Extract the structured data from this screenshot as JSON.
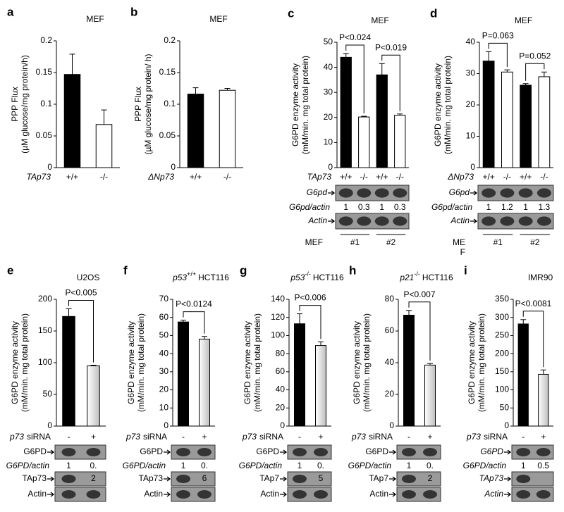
{
  "chart_data": [
    {
      "panel": "a",
      "type": "bar",
      "title": "MEF",
      "ylabel": [
        "PPP Flux",
        "(µM glucose/mg protein/h)"
      ],
      "group_label": "TAp73",
      "categories": [
        "+/+",
        "-/-"
      ],
      "values": [
        0.147,
        0.068
      ],
      "errors": [
        0.032,
        0.023
      ],
      "colors": [
        "#000000",
        "#ffffff"
      ],
      "ylim": [
        0,
        0.2
      ],
      "yticks": [
        0,
        0.05,
        0.1,
        0.15,
        0.2
      ]
    },
    {
      "panel": "b",
      "type": "bar",
      "title": "MEF",
      "ylabel": [
        "PPP Flux",
        "(µM glucose/mg protein/ h)"
      ],
      "group_label": "ΔNp73",
      "categories": [
        "+/+",
        "-/-"
      ],
      "values": [
        0.116,
        0.122
      ],
      "errors": [
        0.01,
        0.003
      ],
      "colors": [
        "#000000",
        "#ffffff"
      ],
      "ylim": [
        0,
        0.2
      ],
      "yticks": [
        0,
        0.05,
        0.1,
        0.15,
        0.2
      ]
    },
    {
      "panel": "c",
      "type": "bar",
      "title": "MEF",
      "ylabel": [
        "G6PD enzyme activity",
        "(mM/min. mg total protein)"
      ],
      "group_label": "TAp73",
      "categories": [
        "+/+",
        "-/-",
        "+/+",
        "-/-"
      ],
      "values": [
        44,
        20.2,
        37,
        20.9
      ],
      "errors": [
        1.5,
        0.3,
        4.5,
        0.5
      ],
      "colors": [
        "#000000",
        "#ffffff",
        "#000000",
        "#ffffff"
      ],
      "ylim": [
        0,
        50
      ],
      "yticks": [
        0,
        10,
        20,
        30,
        40,
        50
      ],
      "annotations": [
        "P<0.024",
        "P<0.019"
      ],
      "blot": {
        "rows": [
          "G6pd",
          "G6pd/actin",
          "Actin"
        ],
        "ratios": [
          "1",
          "0.3",
          "1",
          "0.3"
        ],
        "cell_line": [
          "MEF"
        ],
        "groups": [
          "#1",
          "#2"
        ]
      }
    },
    {
      "panel": "d",
      "type": "bar",
      "title": "MEF",
      "ylabel": [
        "G6PD enzyme activity",
        "(mM/min. mg total protein)"
      ],
      "group_label": "ΔNp73",
      "categories": [
        "+/+",
        "-/-",
        "+/+",
        "-/-"
      ],
      "values": [
        34,
        30.5,
        26.3,
        29
      ],
      "errors": [
        3,
        0.7,
        0.5,
        1.5
      ],
      "colors": [
        "#000000",
        "#ffffff",
        "#000000",
        "#ffffff"
      ],
      "ylim": [
        0,
        40
      ],
      "yticks": [
        0,
        10,
        20,
        30,
        40
      ],
      "annotations": [
        "P=0.063",
        "P=0.052"
      ],
      "blot": {
        "rows": [
          "G6pd",
          "G6pd/actin",
          "Actin"
        ],
        "ratios": [
          "1",
          "1.2",
          "1",
          "1.3"
        ],
        "cell_line": [
          "ME",
          "F"
        ],
        "groups": [
          "#1",
          "#2"
        ]
      }
    },
    {
      "panel": "e",
      "type": "bar",
      "title": "U2OS",
      "ylabel": [
        "G6PD enzyme activity",
        "(mM/min. mg total protein)"
      ],
      "xlabel_gene": "p73",
      "xlabel": "siRNA",
      "categories": [
        "-",
        "+"
      ],
      "values": [
        173,
        95
      ],
      "errors": [
        12,
        1
      ],
      "colors": [
        "#000000",
        "#bfbfbf"
      ],
      "ylim": [
        0,
        200
      ],
      "yticks": [
        0,
        50,
        100,
        150,
        200
      ],
      "annotations": [
        "P<0.005"
      ],
      "blot": {
        "rows": [
          "G6PD",
          "G6PD/actin",
          "TAp73",
          "Actin"
        ],
        "ratios": [
          "1",
          "0."
        ],
        "overlay": "2"
      }
    },
    {
      "panel": "f",
      "type": "bar",
      "title_gene": "p53",
      "title_sup": "+/+",
      "title": "HCT116",
      "ylabel": [
        "G6PD enzyme activity",
        "(mM/min. mg total protein)"
      ],
      "xlabel_gene": "p73",
      "xlabel": "siRNA",
      "categories": [
        "-",
        "+"
      ],
      "values": [
        57.5,
        48
      ],
      "errors": [
        1,
        1.5
      ],
      "colors": [
        "#000000",
        "#bfbfbf"
      ],
      "ylim": [
        0,
        70
      ],
      "yticks": [
        0,
        10,
        20,
        30,
        40,
        50,
        60,
        70
      ],
      "annotations": [
        "P<0.0124"
      ],
      "blot": {
        "rows": [
          "G6PD",
          "G6PD/actin",
          "TAp73",
          "Actin"
        ],
        "ratios": [
          "1",
          "0."
        ],
        "overlay": "6"
      }
    },
    {
      "panel": "g",
      "type": "bar",
      "title_gene": "p53",
      "title_sup": "-/-",
      "title": "HCT116",
      "ylabel": [
        "G6PD enzyme activity",
        "(mM/min. mg total protein)"
      ],
      "xlabel_gene": "p73",
      "xlabel": "siRNA",
      "categories": [
        "-",
        "+"
      ],
      "values": [
        113,
        89
      ],
      "errors": [
        11,
        4
      ],
      "colors": [
        "#000000",
        "#bfbfbf"
      ],
      "ylim": [
        0,
        140
      ],
      "yticks": [
        0,
        20,
        40,
        60,
        80,
        100,
        120,
        140
      ],
      "annotations": [
        "P<0.006"
      ],
      "blot": {
        "rows": [
          "G6PD",
          "G6PD/actin",
          "TAp7",
          "Actin"
        ],
        "ratios": [
          "1",
          "0."
        ],
        "overlay": "5"
      }
    },
    {
      "panel": "h",
      "type": "bar",
      "title_gene": "p21",
      "title_sup": "-/-",
      "title": "HCT116",
      "ylabel": [
        "G6PD enzyme activity",
        "(mM/min. mg total protein)"
      ],
      "xlabel_gene": "p73",
      "xlabel": "siRNA",
      "categories": [
        "-",
        "+"
      ],
      "values": [
        70,
        38.5
      ],
      "errors": [
        3,
        1
      ],
      "colors": [
        "#000000",
        "#bfbfbf"
      ],
      "ylim": [
        0,
        80
      ],
      "yticks": [
        0,
        20,
        40,
        60,
        80
      ],
      "annotations": [
        "P<0.007"
      ],
      "blot": {
        "rows": [
          "G6PD",
          "G6PD/actin",
          "TAp7",
          "Actin"
        ],
        "ratios": [
          "1",
          "0."
        ],
        "overlay": "2"
      }
    },
    {
      "panel": "i",
      "type": "bar",
      "title": "IMR90",
      "ylabel": [
        "G6PD enzyme activity",
        "(mM/min. mg total protein)"
      ],
      "xlabel_gene": "p73",
      "xlabel": "siRNA",
      "categories": [
        "-",
        "+"
      ],
      "values": [
        282,
        143
      ],
      "errors": [
        12,
        12
      ],
      "colors": [
        "#000000",
        "#bfbfbf"
      ],
      "ylim": [
        0,
        350
      ],
      "yticks": [
        0,
        50,
        100,
        150,
        200,
        250,
        300,
        350
      ],
      "annotations": [
        "P<0.0081"
      ],
      "blot": {
        "rows": [
          "G6PD",
          "G6PD/actin",
          "TAp73",
          "Actin"
        ],
        "ratios": [
          "1",
          "0.5"
        ]
      }
    }
  ]
}
